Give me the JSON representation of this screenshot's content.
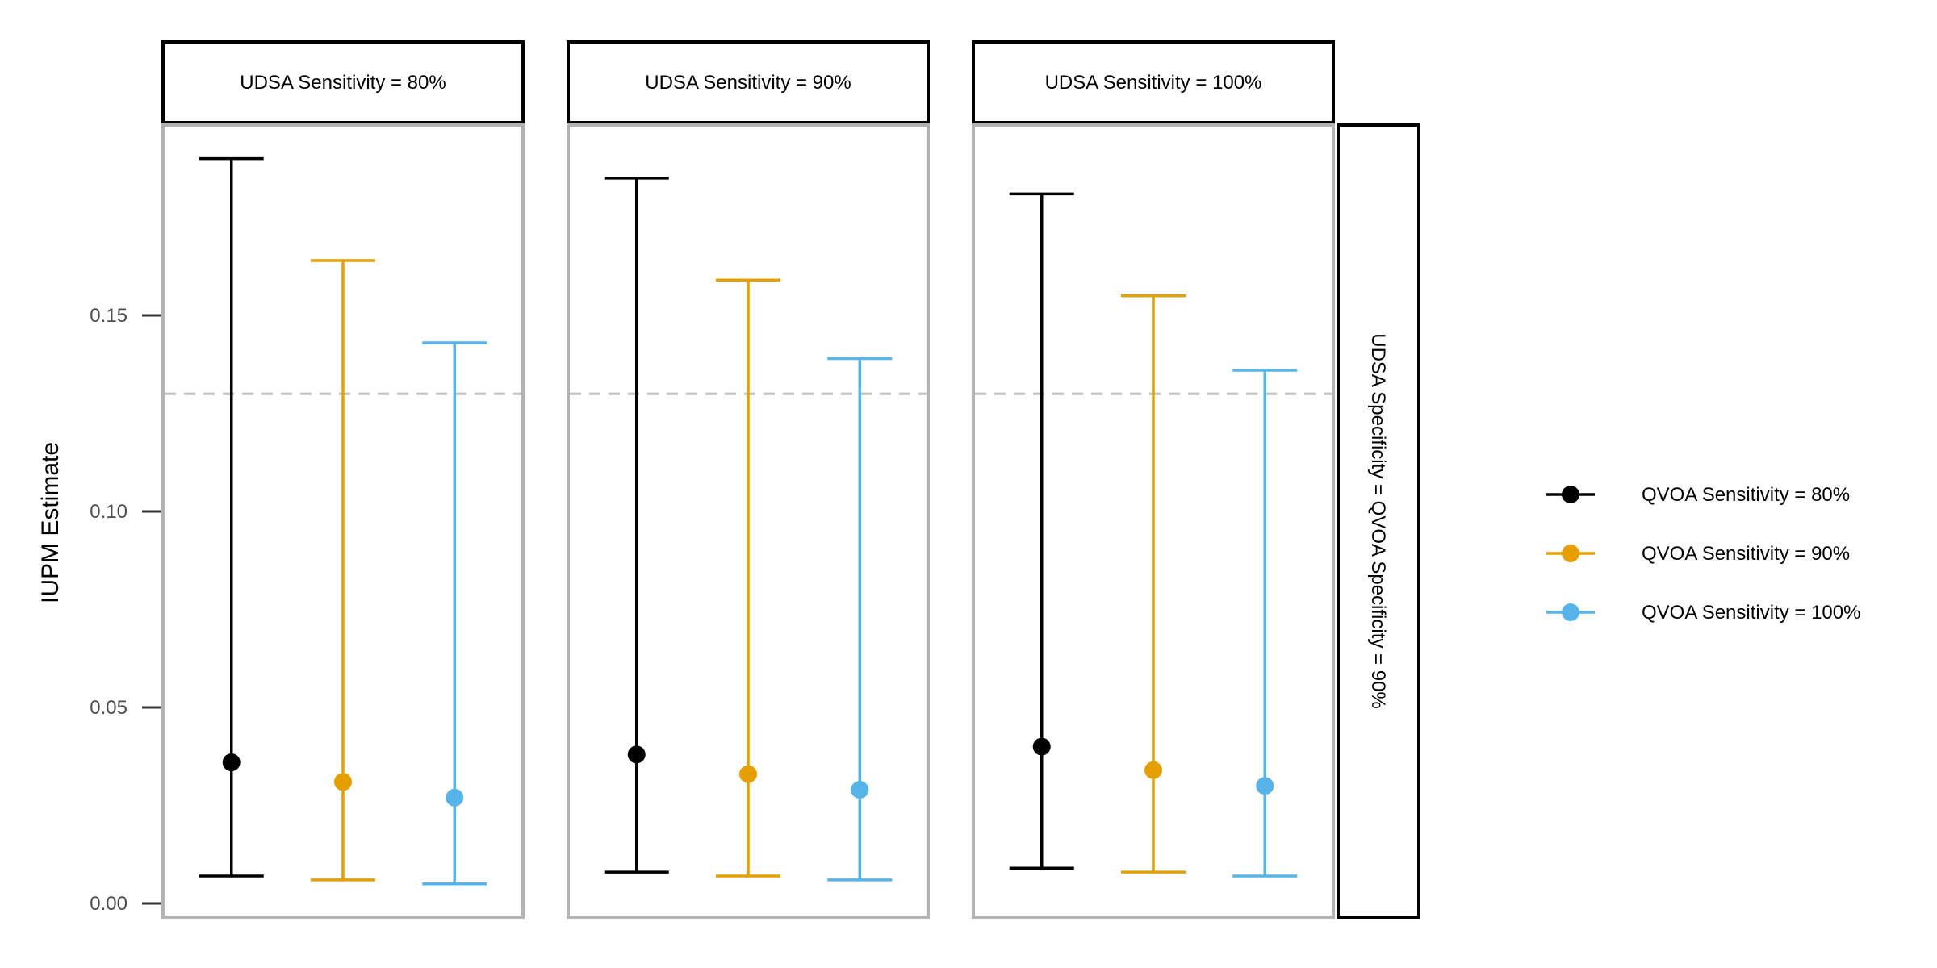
{
  "chart_data": {
    "type": "errorbar",
    "ylabel": "IUPM Estimate",
    "ylim": [
      -0.003,
      0.195
    ],
    "yticks": [
      0.0,
      0.05,
      0.1,
      0.15
    ],
    "ytick_labels": [
      "0.00",
      "0.05",
      "0.10",
      "0.15"
    ],
    "reference_line": 0.13,
    "row_strip": "UDSA Specificity = QVOA Specificity = 90%",
    "legend_position": "right",
    "legend": [
      {
        "label": "QVOA Sensitivity = 80%",
        "color": "#000000"
      },
      {
        "label": "QVOA Sensitivity = 90%",
        "color": "#E69F00"
      },
      {
        "label": "QVOA Sensitivity = 100%",
        "color": "#56B4E9"
      }
    ],
    "panels": [
      {
        "strip": "UDSA Sensitivity = 80%",
        "points": [
          {
            "series": 0,
            "estimate": 0.036,
            "lower": 0.007,
            "upper": 0.19
          },
          {
            "series": 1,
            "estimate": 0.031,
            "lower": 0.006,
            "upper": 0.164
          },
          {
            "series": 2,
            "estimate": 0.027,
            "lower": 0.005,
            "upper": 0.143
          }
        ]
      },
      {
        "strip": "UDSA Sensitivity = 90%",
        "points": [
          {
            "series": 0,
            "estimate": 0.038,
            "lower": 0.008,
            "upper": 0.185
          },
          {
            "series": 1,
            "estimate": 0.033,
            "lower": 0.007,
            "upper": 0.159
          },
          {
            "series": 2,
            "estimate": 0.029,
            "lower": 0.006,
            "upper": 0.139
          }
        ]
      },
      {
        "strip": "UDSA Sensitivity = 100%",
        "points": [
          {
            "series": 0,
            "estimate": 0.04,
            "lower": 0.009,
            "upper": 0.181
          },
          {
            "series": 1,
            "estimate": 0.034,
            "lower": 0.008,
            "upper": 0.155
          },
          {
            "series": 2,
            "estimate": 0.03,
            "lower": 0.007,
            "upper": 0.136
          }
        ]
      }
    ]
  }
}
